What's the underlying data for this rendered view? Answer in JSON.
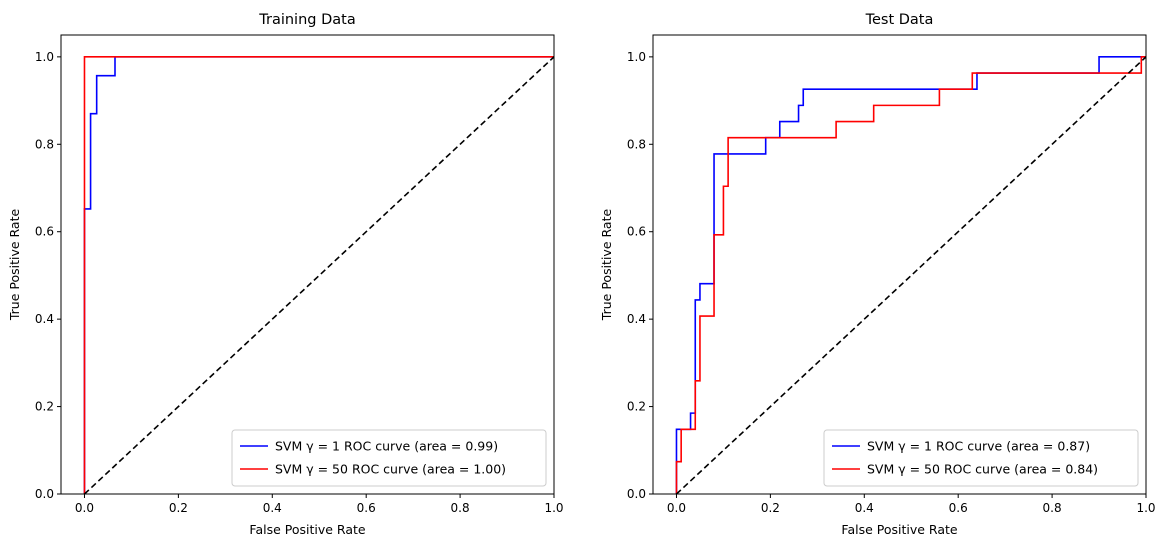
{
  "chart_data": [
    {
      "type": "line",
      "title": "Training Data",
      "xlabel": "False Positive Rate",
      "ylabel": "True Positive Rate",
      "xlim": [
        -0.05,
        1.0
      ],
      "ylim": [
        0.0,
        1.05
      ],
      "xticks": [
        "0.0",
        "0.2",
        "0.4",
        "0.6",
        "0.8",
        "1.0"
      ],
      "yticks": [
        "0.0",
        "0.2",
        "0.4",
        "0.6",
        "0.8",
        "1.0"
      ],
      "legend_location": "lower-right",
      "grid": false,
      "series": [
        {
          "name": "SVM γ = 1 ROC curve (area = 0.99)",
          "color": "#0000ff",
          "step": true,
          "x": [
            0,
            0,
            0.013,
            0.013,
            0.026,
            0.026,
            0.065,
            0.065,
            1.0
          ],
          "y": [
            0,
            0.652,
            0.652,
            0.87,
            0.87,
            0.957,
            0.957,
            1.0,
            1.0
          ]
        },
        {
          "name": "SVM γ = 50 ROC curve (area = 1.00)",
          "color": "#ff0000",
          "step": true,
          "x": [
            0,
            0,
            1.0
          ],
          "y": [
            0,
            1.0,
            1.0
          ]
        },
        {
          "color": "#000000",
          "dashed": true,
          "x": [
            0,
            1
          ],
          "y": [
            0,
            1
          ]
        }
      ]
    },
    {
      "type": "line",
      "title": "Test Data",
      "xlabel": "False Positive Rate",
      "ylabel": "True Positive Rate",
      "xlim": [
        -0.05,
        1.0
      ],
      "ylim": [
        0.0,
        1.05
      ],
      "xticks": [
        "0.0",
        "0.2",
        "0.4",
        "0.6",
        "0.8",
        "1.0"
      ],
      "yticks": [
        "0.0",
        "0.2",
        "0.4",
        "0.6",
        "0.8",
        "1.0"
      ],
      "legend_location": "lower-right",
      "grid": false,
      "series": [
        {
          "name": "SVM γ = 1 ROC curve (area = 0.87)",
          "color": "#0000ff",
          "step": true,
          "x": [
            0,
            0,
            0.03,
            0.03,
            0.04,
            0.04,
            0.05,
            0.05,
            0.08,
            0.08,
            0.19,
            0.19,
            0.22,
            0.22,
            0.26,
            0.26,
            0.27,
            0.27,
            0.64,
            0.64,
            0.9,
            0.9,
            0.99,
            0.99,
            1.0
          ],
          "y": [
            0,
            0.148,
            0.148,
            0.185,
            0.185,
            0.444,
            0.444,
            0.481,
            0.481,
            0.778,
            0.778,
            0.815,
            0.815,
            0.852,
            0.852,
            0.889,
            0.889,
            0.926,
            0.926,
            0.963,
            0.963,
            1.0,
            1.0,
            1.0,
            1.0
          ]
        },
        {
          "name": "SVM γ = 50 ROC curve (area = 0.84)",
          "color": "#ff0000",
          "step": true,
          "x": [
            0,
            0,
            0.01,
            0.01,
            0.04,
            0.04,
            0.05,
            0.05,
            0.08,
            0.08,
            0.1,
            0.1,
            0.11,
            0.11,
            0.34,
            0.34,
            0.42,
            0.42,
            0.56,
            0.56,
            0.63,
            0.63,
            0.97,
            0.97,
            0.99,
            0.99,
            1.0
          ],
          "y": [
            0,
            0.074,
            0.074,
            0.148,
            0.148,
            0.259,
            0.259,
            0.407,
            0.407,
            0.593,
            0.593,
            0.704,
            0.704,
            0.815,
            0.815,
            0.852,
            0.852,
            0.889,
            0.889,
            0.926,
            0.926,
            0.963,
            0.963,
            0.963,
            0.963,
            1.0,
            1.0
          ]
        },
        {
          "color": "#000000",
          "dashed": true,
          "x": [
            0,
            1
          ],
          "y": [
            0,
            1
          ]
        }
      ]
    }
  ]
}
